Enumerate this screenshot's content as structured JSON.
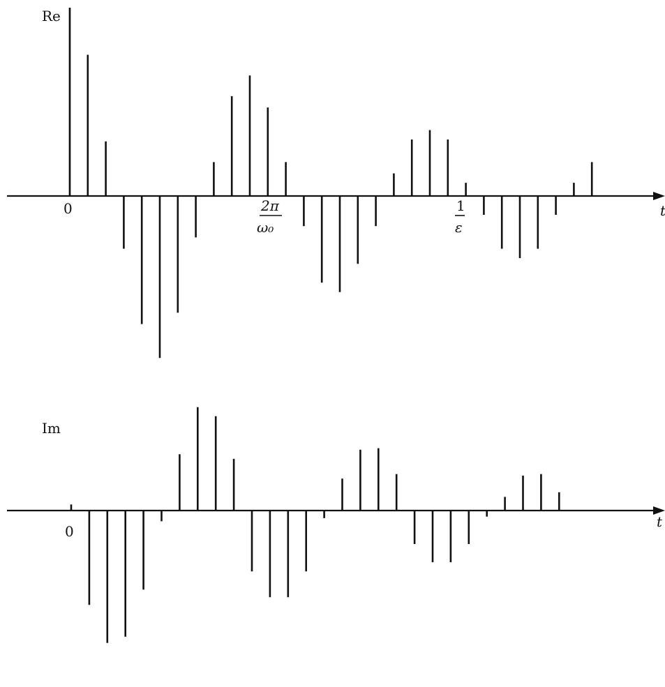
{
  "chart_data": [
    {
      "type": "stem",
      "ylabel": "Re",
      "xlabel": "t",
      "x_tick_labels": [
        {
          "text": "0",
          "at_sample": 0
        },
        {
          "text_num": "2π",
          "text_den": "ω₀",
          "at_sample": 11
        },
        {
          "text_num": "1",
          "text_den": "ε",
          "at_sample": 21
        }
      ],
      "x": [
        0,
        1,
        2,
        3,
        4,
        5,
        6,
        7,
        8,
        9,
        10,
        11,
        12,
        13,
        14,
        15,
        16,
        17,
        18,
        19,
        20,
        21,
        22,
        23,
        24,
        25,
        26,
        27,
        28,
        29,
        30
      ],
      "values": [
        1.0,
        0.75,
        0.29,
        -0.28,
        -0.68,
        -0.86,
        -0.62,
        -0.22,
        0.18,
        0.53,
        0.64,
        0.47,
        0.18,
        -0.16,
        -0.46,
        -0.51,
        -0.36,
        -0.16,
        0.12,
        0.3,
        0.35,
        0.3,
        0.07,
        -0.1,
        -0.28,
        -0.33,
        -0.28,
        -0.1,
        0.07,
        0.18,
        0.0
      ],
      "ylim": [
        -1.0,
        1.05
      ]
    },
    {
      "type": "stem",
      "ylabel": "Im",
      "xlabel": "t",
      "x_tick_labels": [
        {
          "text": "0",
          "at_sample": 0
        }
      ],
      "x": [
        0,
        1,
        2,
        3,
        4,
        5,
        6,
        7,
        8,
        9,
        10,
        11,
        12,
        13,
        14,
        15,
        16,
        17,
        18,
        19,
        20,
        21,
        22,
        23,
        24,
        25,
        26,
        27,
        28,
        29,
        30
      ],
      "values": [
        0.04,
        -0.62,
        -0.87,
        -0.83,
        -0.52,
        -0.07,
        0.37,
        0.68,
        0.62,
        0.34,
        -0.4,
        -0.57,
        -0.57,
        -0.4,
        -0.05,
        0.21,
        0.4,
        0.41,
        0.24,
        -0.22,
        -0.34,
        -0.34,
        -0.22,
        -0.04,
        0.09,
        0.23,
        0.24,
        0.12,
        0.0,
        0.0,
        0.0
      ],
      "ylim": [
        -1.0,
        0.75
      ]
    }
  ]
}
